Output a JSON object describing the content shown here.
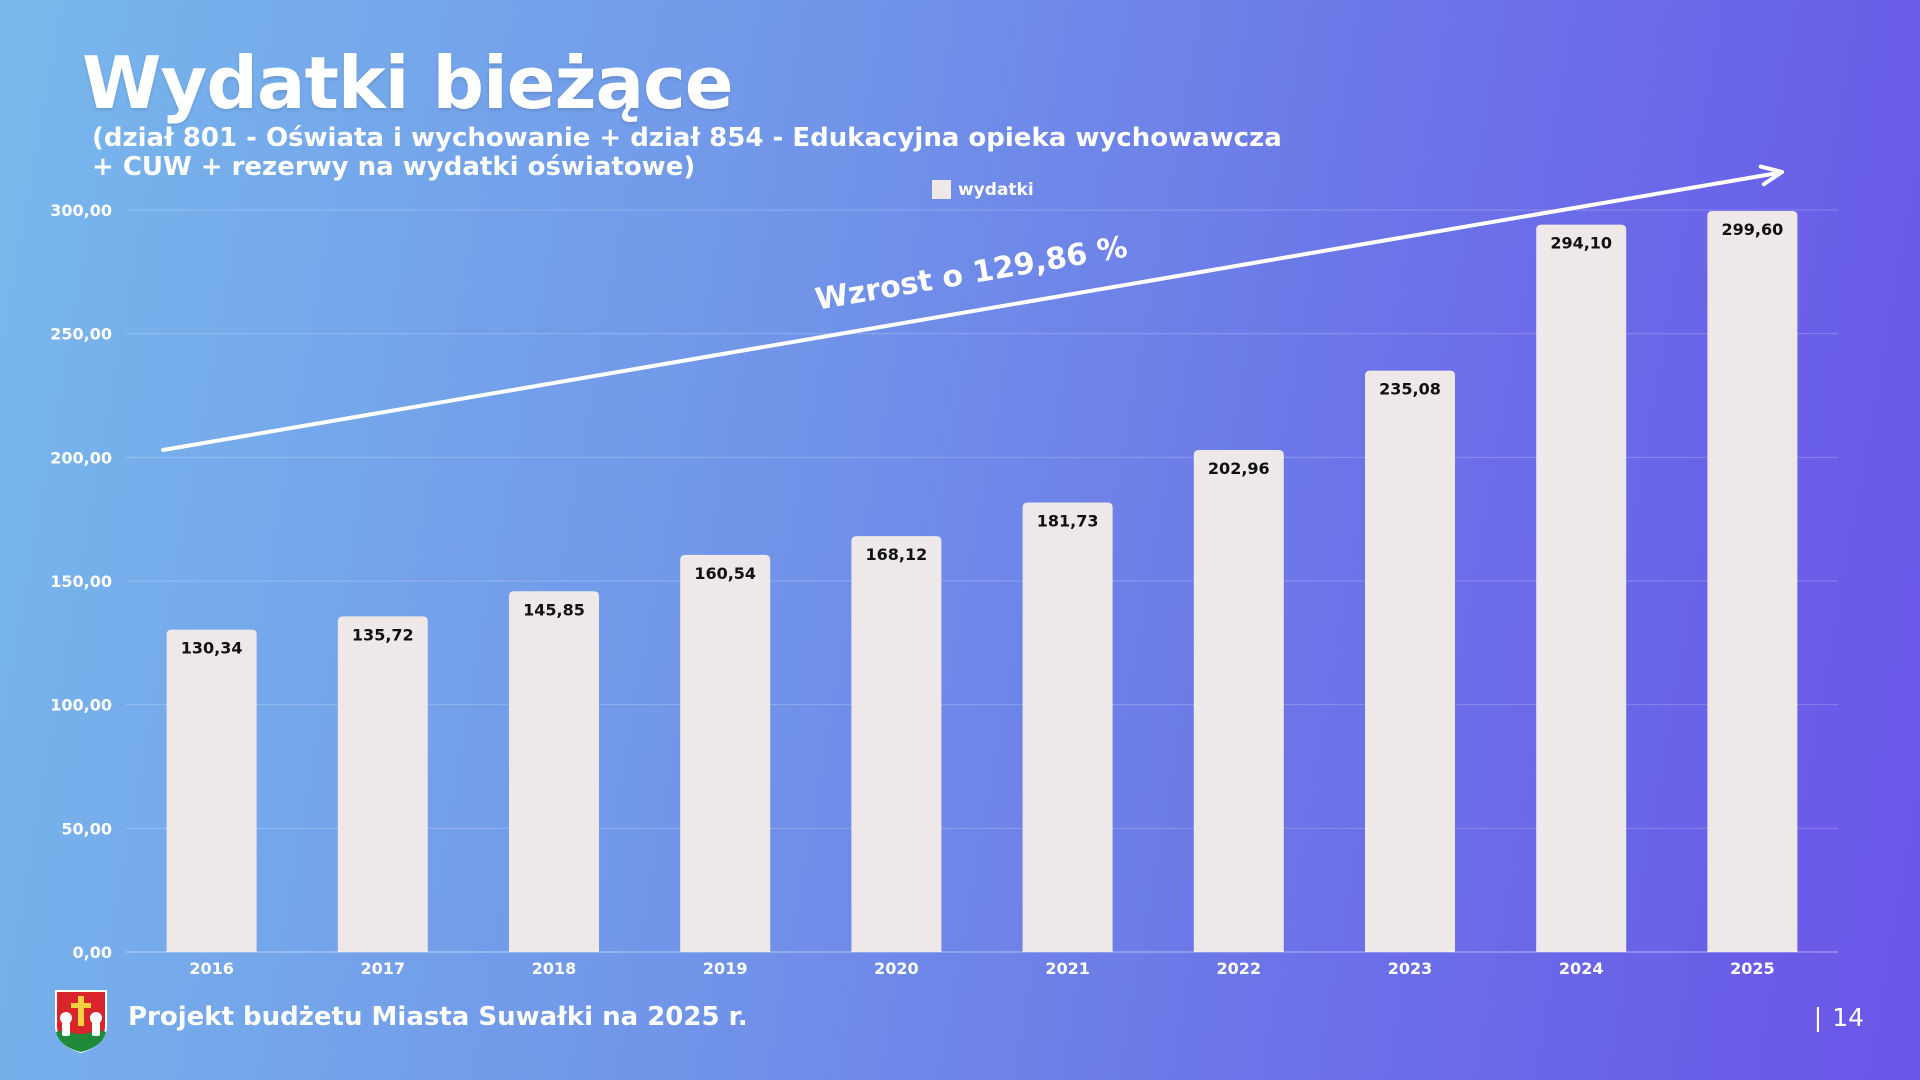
{
  "slide": {
    "title": "Wydatki bieżące",
    "subtitle_line1": "(dział 801 - Oświata i wychowanie + dział 854 - Edukacyjna opieka wychowawcza",
    "subtitle_line2": "+ CUW + rezerwy na wydatki oświatowe)",
    "footer": "Projekt budżetu Miasta Suwałki na 2025 r.",
    "page_separator": "|",
    "page_number": "14",
    "logo_icon": "city-crest-icon"
  },
  "colors": {
    "bar": "#eee8e9",
    "text_dark": "#111111",
    "text_light": "#ffffff",
    "grid": "rgba(255,255,255,0.22)"
  },
  "chart_data": {
    "type": "bar",
    "categories": [
      "2016",
      "2017",
      "2018",
      "2019",
      "2020",
      "2021",
      "2022",
      "2023",
      "2024",
      "2025"
    ],
    "series": [
      {
        "name": "wydatki",
        "values": [
          130.34,
          135.72,
          145.85,
          160.54,
          168.12,
          181.73,
          202.96,
          235.08,
          294.1,
          299.6
        ],
        "labels": [
          "130,34",
          "135,72",
          "145,85",
          "160,54",
          "168,12",
          "181,73",
          "202,96",
          "235,08",
          "294,10",
          "299,60"
        ]
      }
    ],
    "ylim": [
      0,
      300
    ],
    "yticks": [
      0,
      50,
      100,
      150,
      200,
      250,
      300
    ],
    "ytick_labels": [
      "0,00",
      "50,00",
      "100,00",
      "150,00",
      "200,00",
      "250,00",
      "300,00"
    ],
    "grid": true,
    "legend": "top-center",
    "annotation": "Wzrost o 129,86 %"
  }
}
